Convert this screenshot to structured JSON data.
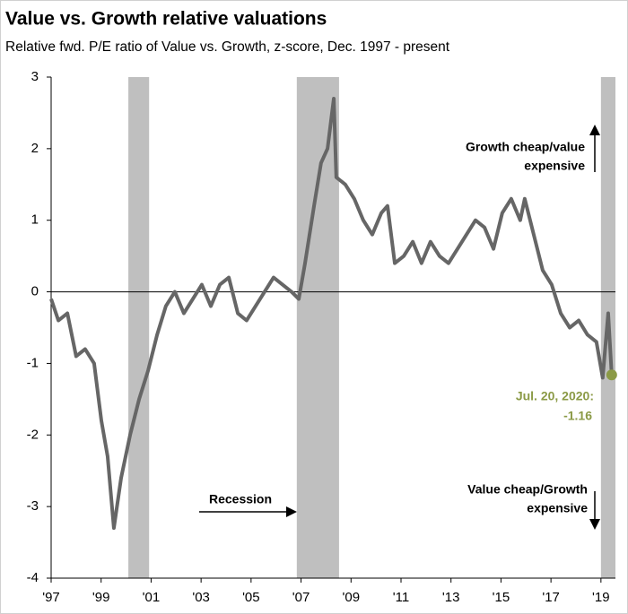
{
  "chart_data": {
    "type": "line",
    "title": "Value vs. Growth relative valuations",
    "subtitle": "Relative fwd. P/E ratio of Value vs. Growth, z-score, Dec. 1997 - present",
    "xlim": [
      1997,
      2019.58
    ],
    "xticks": [
      {
        "value": 1997,
        "label": "'97"
      },
      {
        "value": 1999,
        "label": "'99"
      },
      {
        "value": 2001,
        "label": "'01"
      },
      {
        "value": 2003,
        "label": "'03"
      },
      {
        "value": 2005,
        "label": "'05"
      },
      {
        "value": 2007,
        "label": "'07"
      },
      {
        "value": 2009,
        "label": "'09"
      },
      {
        "value": 2011,
        "label": "'11"
      },
      {
        "value": 2013,
        "label": "'13"
      },
      {
        "value": 2015,
        "label": "'15"
      },
      {
        "value": 2017,
        "label": "'17"
      },
      {
        "value": 2019,
        "label": "'19"
      }
    ],
    "ylim": [
      -4,
      3
    ],
    "yticks": [
      -4,
      -3,
      -2,
      -1,
      0,
      1,
      2,
      3
    ],
    "grid": false,
    "recessions": {
      "name": "Recession",
      "color": "#bfbfbf",
      "spans": [
        [
          2000.09,
          2000.92
        ],
        [
          2006.83,
          2008.52
        ],
        [
          2019.0,
          2019.58
        ]
      ]
    },
    "series": [
      {
        "color": "#666666",
        "x": [
          1997.0,
          1997.29,
          1997.65,
          1998.0,
          1998.36,
          1998.72,
          1999.01,
          1999.26,
          1999.51,
          1999.8,
          2000.16,
          2000.52,
          2000.88,
          2001.24,
          2001.59,
          2001.95,
          2002.31,
          2002.67,
          2003.03,
          2003.39,
          2003.75,
          2004.11,
          2004.47,
          2004.82,
          2005.18,
          2005.54,
          2005.9,
          2006.26,
          2006.62,
          2006.91,
          2007.16,
          2007.52,
          2007.8,
          2008.06,
          2008.31,
          2008.41,
          2008.77,
          2009.13,
          2009.49,
          2009.85,
          2010.21,
          2010.46,
          2010.75,
          2011.11,
          2011.47,
          2011.82,
          2012.18,
          2012.54,
          2012.9,
          2013.26,
          2013.62,
          2013.98,
          2014.34,
          2014.7,
          2015.05,
          2015.41,
          2015.77,
          2015.95,
          2016.31,
          2016.67,
          2017.03,
          2017.39,
          2017.75,
          2018.11,
          2018.46,
          2018.82,
          2019.07,
          2019.29,
          2019.43
        ],
        "values": [
          -0.1,
          -0.4,
          -0.3,
          -0.9,
          -0.8,
          -1.0,
          -1.8,
          -2.3,
          -3.3,
          -2.6,
          -2.0,
          -1.5,
          -1.1,
          -0.6,
          -0.2,
          0.0,
          -0.3,
          -0.1,
          0.1,
          -0.2,
          0.1,
          0.2,
          -0.3,
          -0.4,
          -0.2,
          0.0,
          0.2,
          0.1,
          0.0,
          -0.1,
          0.4,
          1.2,
          1.8,
          2.0,
          2.7,
          1.6,
          1.5,
          1.3,
          1.0,
          0.8,
          1.1,
          1.2,
          0.4,
          0.5,
          0.7,
          0.4,
          0.7,
          0.5,
          0.4,
          0.6,
          0.8,
          1.0,
          0.9,
          0.6,
          1.1,
          1.3,
          1.0,
          1.3,
          0.8,
          0.3,
          0.1,
          -0.3,
          -0.5,
          -0.4,
          -0.6,
          -0.7,
          -1.2,
          -0.3,
          -1.16
        ]
      }
    ],
    "highlight": {
      "label": "Jul. 20, 2020:",
      "color": "#8b9a46"
    },
    "annotations": {
      "up": [
        "Growth cheap/value",
        "expensive"
      ],
      "down": [
        "Value cheap/Growth",
        "expensive"
      ]
    }
  }
}
